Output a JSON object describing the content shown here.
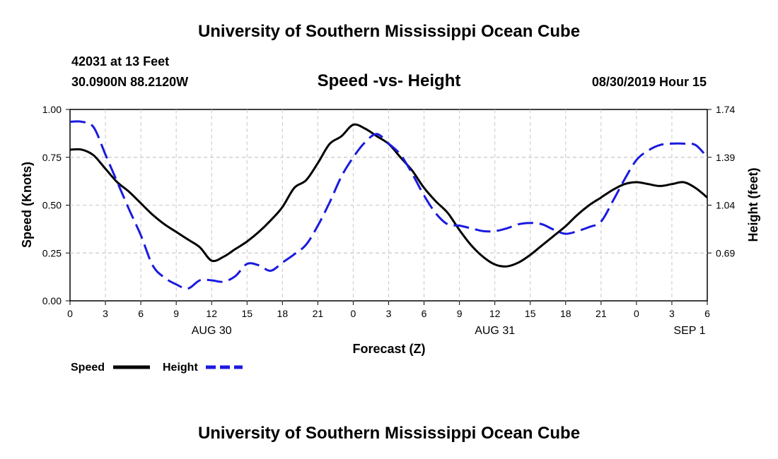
{
  "header": {
    "title": "University of Southern Mississippi Ocean Cube",
    "station": "42031 at 13 Feet",
    "coords": "30.0900N 88.2120W",
    "subtitle": "Speed -vs- Height",
    "datetime": "08/30/2019 Hour 15"
  },
  "footer": {
    "title": "University of Southern Mississippi Ocean Cube"
  },
  "chart_data": {
    "type": "line",
    "title": "Speed -vs- Height",
    "xlabel": "Forecast (Z)",
    "ylabel": "Speed (Knots)",
    "y2label": "Height (feet)",
    "xlim": [
      0,
      54
    ],
    "ylim": [
      0,
      1.0
    ],
    "y2lim": [
      0.34,
      1.74
    ],
    "grid": true,
    "x_ticks": [
      0,
      3,
      6,
      9,
      12,
      15,
      18,
      21,
      24,
      27,
      30,
      33,
      36,
      39,
      42,
      45,
      48,
      51,
      54
    ],
    "x_tick_labels": [
      "0",
      "3",
      "6",
      "9",
      "12",
      "15",
      "18",
      "21",
      "0",
      "3",
      "6",
      "9",
      "12",
      "15",
      "18",
      "21",
      "0",
      "3",
      "6"
    ],
    "date_labels": [
      {
        "x": 12,
        "label": "AUG 30"
      },
      {
        "x": 36,
        "label": "AUG 31"
      },
      {
        "x": 52.5,
        "label": "SEP 1"
      }
    ],
    "y_ticks": [
      0,
      0.25,
      0.5,
      0.75,
      1.0
    ],
    "y_tick_labels": [
      "0.00",
      "0.25",
      "0.50",
      "0.75",
      "1.00"
    ],
    "y2_ticks": [
      0.69,
      1.04,
      1.39,
      1.74
    ],
    "y2_tick_labels": [
      "0.69",
      "1.04",
      "1.39",
      "1.74"
    ],
    "series": [
      {
        "name": "Speed",
        "axis": "left",
        "color": "#000000",
        "dash": "solid",
        "x": [
          0,
          1,
          2,
          3,
          4,
          5,
          6,
          7,
          8,
          9,
          10,
          11,
          12,
          13,
          14,
          15,
          16,
          17,
          18,
          19,
          20,
          21,
          22,
          23,
          24,
          25,
          26,
          27,
          28,
          29,
          30,
          31,
          32,
          33,
          34,
          35,
          36,
          37,
          38,
          39,
          40,
          41,
          42,
          43,
          44,
          45,
          46,
          47,
          48,
          49,
          50,
          51,
          52,
          53,
          54
        ],
        "values": [
          0.79,
          0.79,
          0.76,
          0.69,
          0.62,
          0.57,
          0.51,
          0.45,
          0.4,
          0.36,
          0.32,
          0.28,
          0.21,
          0.23,
          0.27,
          0.31,
          0.36,
          0.42,
          0.49,
          0.59,
          0.63,
          0.72,
          0.82,
          0.86,
          0.92,
          0.9,
          0.86,
          0.82,
          0.75,
          0.68,
          0.59,
          0.52,
          0.46,
          0.37,
          0.29,
          0.23,
          0.19,
          0.18,
          0.2,
          0.24,
          0.29,
          0.34,
          0.39,
          0.45,
          0.5,
          0.54,
          0.58,
          0.61,
          0.62,
          0.61,
          0.6,
          0.61,
          0.62,
          0.59,
          0.54
        ]
      },
      {
        "name": "Height",
        "axis": "right",
        "color": "#1a1adf",
        "dash": "dashed",
        "x": [
          0,
          1,
          2,
          3,
          4,
          5,
          6,
          7,
          8,
          9,
          10,
          11,
          12,
          13,
          14,
          15,
          16,
          17,
          18,
          19,
          20,
          21,
          22,
          23,
          24,
          25,
          26,
          27,
          28,
          29,
          30,
          31,
          32,
          33,
          34,
          35,
          36,
          37,
          38,
          39,
          40,
          41,
          42,
          43,
          44,
          45,
          46,
          47,
          48,
          49,
          50,
          51,
          52,
          53,
          54
        ],
        "values": [
          1.65,
          1.65,
          1.61,
          1.41,
          1.21,
          1.01,
          0.82,
          0.6,
          0.51,
          0.46,
          0.43,
          0.49,
          0.49,
          0.48,
          0.52,
          0.61,
          0.6,
          0.56,
          0.62,
          0.68,
          0.75,
          0.89,
          1.06,
          1.25,
          1.39,
          1.5,
          1.56,
          1.49,
          1.41,
          1.27,
          1.11,
          0.98,
          0.9,
          0.89,
          0.87,
          0.85,
          0.85,
          0.87,
          0.9,
          0.91,
          0.9,
          0.86,
          0.83,
          0.85,
          0.88,
          0.92,
          1.07,
          1.23,
          1.37,
          1.44,
          1.48,
          1.49,
          1.49,
          1.48,
          1.39
        ]
      }
    ],
    "legend": [
      {
        "label": "Speed",
        "style": "solid"
      },
      {
        "label": "Height",
        "style": "dashed"
      }
    ]
  }
}
